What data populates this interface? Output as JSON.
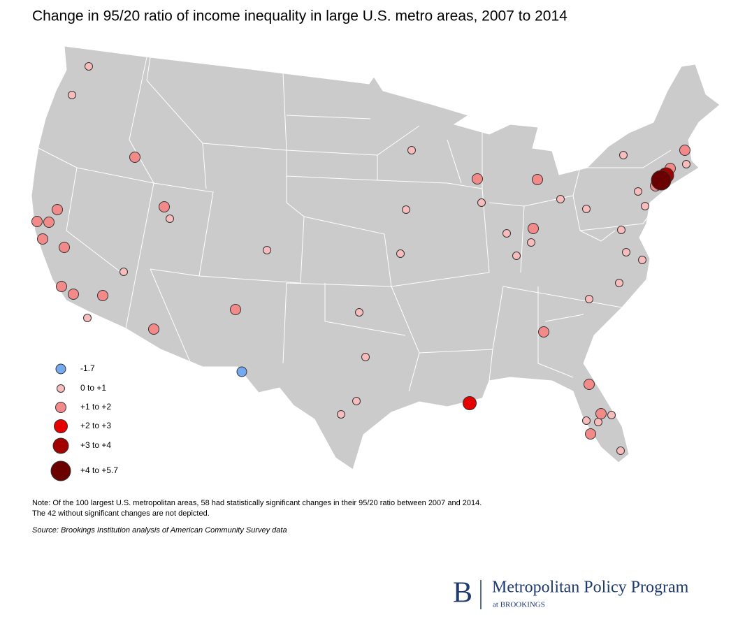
{
  "title": "Change in 95/20 ratio of income inequality in large U.S. metro areas, 2007 to 2014",
  "legend": [
    {
      "label": "-1.7",
      "color": "#74a9f0"
    },
    {
      "label": "0 to +1",
      "color": "#f8bcbc"
    },
    {
      "label": "+1 to +2",
      "color": "#f28a8a"
    },
    {
      "label": "+2 to +3",
      "color": "#e60000"
    },
    {
      "label": "+3 to +4",
      "color": "#a30000"
    },
    {
      "label": "+4 to +5.7",
      "color": "#6b0000"
    }
  ],
  "note": [
    "Note: Of the 100 largest U.S. metropolitan areas, 58 had statistically significant changes in their 95/20 ratio between 2007 and 2014.",
    "The 42 without significant changes are not depicted."
  ],
  "source": "Source: Brookings Institution analysis of American Community Survey data",
  "logo": {
    "letter": "B",
    "name": "Metropolitan Policy Program",
    "sub": "at BROOKINGS"
  }
}
